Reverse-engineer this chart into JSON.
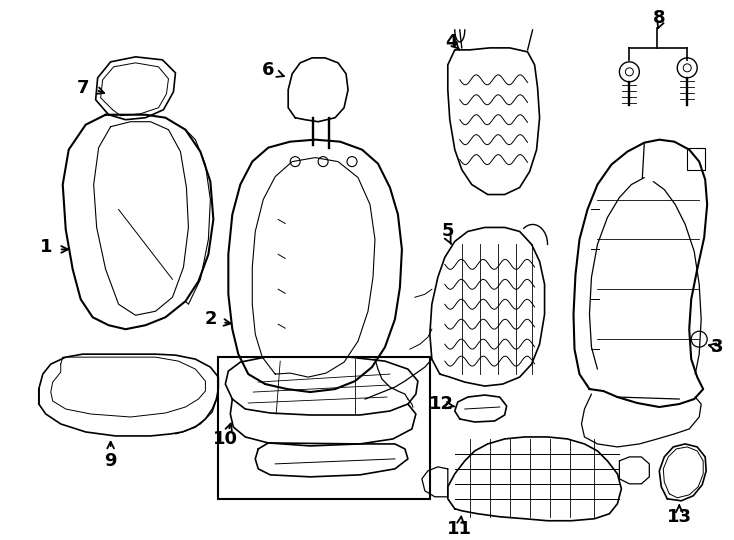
{
  "bg": "#ffffff",
  "lc": "#000000",
  "figw": 7.34,
  "figh": 5.4,
  "dpi": 100
}
